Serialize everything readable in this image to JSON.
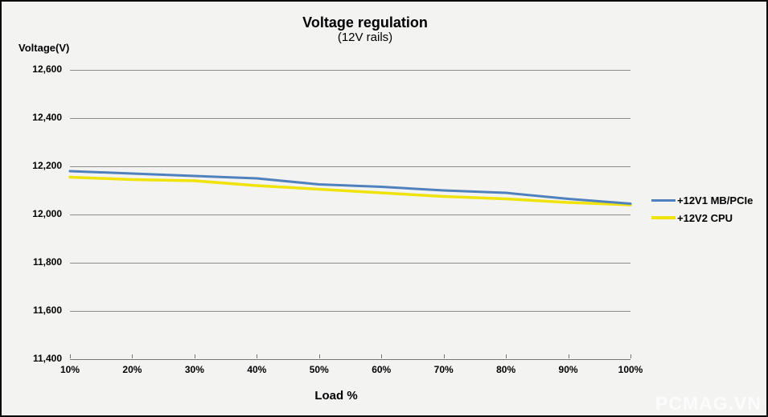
{
  "title": {
    "line1": "Voltage regulation",
    "line2": "(12V rails)"
  },
  "axes": {
    "y_title": "Voltage(V)",
    "x_title": "Load %",
    "y_tick_labels": [
      "12,600",
      "12,400",
      "12,200",
      "12,000",
      "11,800",
      "11,600",
      "11,400"
    ],
    "x_tick_labels": [
      "10%",
      "20%",
      "30%",
      "40%",
      "50%",
      "60%",
      "70%",
      "80%",
      "90%",
      "100%"
    ]
  },
  "watermark": "PCMAG.VN",
  "colors": {
    "series_blue": "#4f81bd",
    "series_yellow": "#f0e30b",
    "background": "#f3f3f2",
    "gridline": "#8c8c8c"
  },
  "chart_data": {
    "type": "line",
    "title": "Voltage regulation",
    "subtitle": "(12V rails)",
    "xlabel": "Load %",
    "ylabel": "Voltage(V)",
    "x": [
      "10%",
      "20%",
      "30%",
      "40%",
      "50%",
      "60%",
      "70%",
      "80%",
      "90%",
      "100%"
    ],
    "series": [
      {
        "name": "+12V1 MB/PCIe",
        "color": "#4f81bd",
        "values": [
          12180,
          12170,
          12160,
          12150,
          12125,
          12115,
          12100,
          12090,
          12065,
          12045
        ]
      },
      {
        "name": "+12V2 CPU",
        "color": "#f0e30b",
        "values": [
          12155,
          12145,
          12140,
          12120,
          12105,
          12090,
          12075,
          12065,
          12050,
          12040
        ]
      }
    ],
    "ylim": [
      11400,
      12600
    ],
    "y_tick_step": 200,
    "grid": true,
    "legend_position": "right"
  }
}
